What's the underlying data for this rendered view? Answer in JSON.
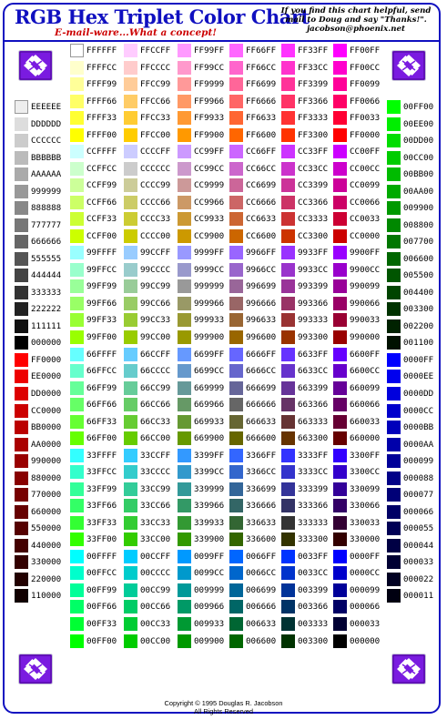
{
  "title": "RGB Hex Triplet Color Chart",
  "subtitle": "E-mail-ware...What a concept!",
  "note_lines": [
    "If you find this chart helpful, send",
    "mail to Doug and say \"Thanks!\".",
    "jacobson@phoenix.net"
  ],
  "copyright_lines": [
    "Copyright © 1995 Douglas R. Jacobson",
    "All Rights Reserved"
  ],
  "logo_icon": "purple-diamond-logo-icon",
  "columns": [
    {
      "hex": [
        "EEEEEE",
        "DDDDDD",
        "CCCCCC",
        "BBBBBB",
        "AAAAAA",
        "999999",
        "888888",
        "777777",
        "666666",
        "555555",
        "444444",
        "333333",
        "222222",
        "111111",
        "000000",
        "FF0000",
        "EE0000",
        "DD0000",
        "CC0000",
        "BB0000",
        "AA0000",
        "990000",
        "880000",
        "770000",
        "660000",
        "550000",
        "440000",
        "330000",
        "220000",
        "110000"
      ]
    },
    {
      "hex": [
        "FFFFFF",
        "FFFFCC",
        "FFFF99",
        "FFFF66",
        "FFFF33",
        "FFFF00",
        "CCFFFF",
        "CCFFCC",
        "CCFF99",
        "CCFF66",
        "CCFF33",
        "CCFF00",
        "99FFFF",
        "99FFCC",
        "99FF99",
        "99FF66",
        "99FF33",
        "99FF00",
        "66FFFF",
        "66FFCC",
        "66FF99",
        "66FF66",
        "66FF33",
        "66FF00",
        "33FFFF",
        "33FFCC",
        "33FF99",
        "33FF66",
        "33FF33",
        "33FF00",
        "00FFFF",
        "00FFCC",
        "00FF99",
        "00FF66",
        "00FF33",
        "00FF00"
      ]
    },
    {
      "hex": [
        "FFCCFF",
        "FFCCCC",
        "FFCC99",
        "FFCC66",
        "FFCC33",
        "FFCC00",
        "CCCCFF",
        "CCCCCC",
        "CCCC99",
        "CCCC66",
        "CCCC33",
        "CCCC00",
        "99CCFF",
        "99CCCC",
        "99CC99",
        "99CC66",
        "99CC33",
        "99CC00",
        "66CCFF",
        "66CCCC",
        "66CC99",
        "66CC66",
        "66CC33",
        "66CC00",
        "33CCFF",
        "33CCCC",
        "33CC99",
        "33CC66",
        "33CC33",
        "33CC00",
        "00CCFF",
        "00CCCC",
        "00CC99",
        "00CC66",
        "00CC33",
        "00CC00"
      ]
    },
    {
      "hex": [
        "FF99FF",
        "FF99CC",
        "FF9999",
        "FF9966",
        "FF9933",
        "FF9900",
        "CC99FF",
        "CC99CC",
        "CC9999",
        "CC9966",
        "CC9933",
        "CC9900",
        "9999FF",
        "9999CC",
        "999999",
        "999966",
        "999933",
        "999900",
        "6699FF",
        "6699CC",
        "669999",
        "669966",
        "669933",
        "669900",
        "3399FF",
        "3399CC",
        "339999",
        "339966",
        "339933",
        "339900",
        "0099FF",
        "0099CC",
        "009999",
        "009966",
        "009933",
        "009900"
      ]
    },
    {
      "hex": [
        "FF66FF",
        "FF66CC",
        "FF6699",
        "FF6666",
        "FF6633",
        "FF6600",
        "CC66FF",
        "CC66CC",
        "CC6699",
        "CC6666",
        "CC6633",
        "CC6600",
        "9966FF",
        "9966CC",
        "996699",
        "996666",
        "996633",
        "996600",
        "6666FF",
        "6666CC",
        "666699",
        "666666",
        "666633",
        "666600",
        "3366FF",
        "3366CC",
        "336699",
        "336666",
        "336633",
        "336600",
        "0066FF",
        "0066CC",
        "006699",
        "006666",
        "006633",
        "006600"
      ]
    },
    {
      "hex": [
        "FF33FF",
        "FF33CC",
        "FF3399",
        "FF3366",
        "FF3333",
        "FF3300",
        "CC33FF",
        "CC33CC",
        "CC3399",
        "CC3366",
        "CC3333",
        "CC3300",
        "9933FF",
        "9933CC",
        "993399",
        "993366",
        "993333",
        "993300",
        "6633FF",
        "6633CC",
        "663399",
        "663366",
        "663333",
        "663300",
        "3333FF",
        "3333CC",
        "333399",
        "333366",
        "333333",
        "333300",
        "0033FF",
        "0033CC",
        "003399",
        "003366",
        "003333",
        "003300"
      ]
    },
    {
      "hex": [
        "FF00FF",
        "FF00CC",
        "FF0099",
        "FF0066",
        "FF0033",
        "FF0000",
        "CC00FF",
        "CC00CC",
        "CC0099",
        "CC0066",
        "CC0033",
        "CC0000",
        "9900FF",
        "9900CC",
        "990099",
        "990066",
        "990033",
        "990000",
        "6600FF",
        "6600CC",
        "660099",
        "660066",
        "660033",
        "660000",
        "3300FF",
        "3300CC",
        "330099",
        "330066",
        "330033",
        "330000",
        "0000FF",
        "0000CC",
        "000099",
        "000066",
        "000033",
        "000000"
      ]
    },
    {
      "hex": [
        "00FF00",
        "00EE00",
        "00DD00",
        "00CC00",
        "00BB00",
        "00AA00",
        "009900",
        "008800",
        "007700",
        "006600",
        "005500",
        "004400",
        "003300",
        "002200",
        "001100",
        "0000FF",
        "0000EE",
        "0000DD",
        "0000CC",
        "0000BB",
        "0000AA",
        "000099",
        "000088",
        "000077",
        "000066",
        "000055",
        "000044",
        "000033",
        "000022",
        "000011"
      ]
    }
  ]
}
